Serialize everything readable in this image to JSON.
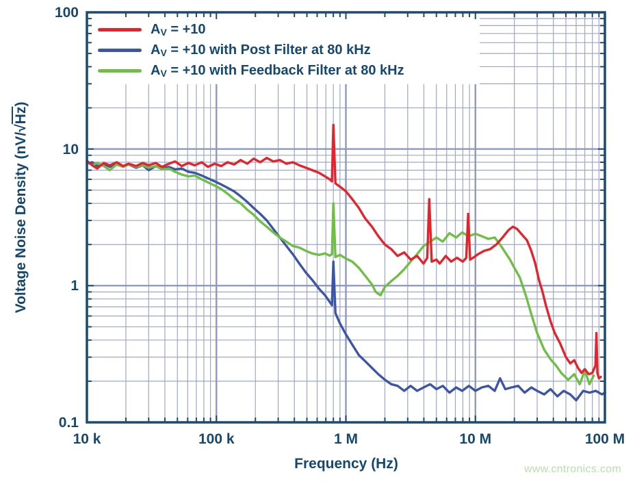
{
  "page": {
    "background": "#ffffff"
  },
  "watermark": {
    "text": "www.cntronics.com",
    "color": "#b6dfa9"
  },
  "colors": {
    "frame": "#1a4a70",
    "text": "#15486e",
    "grid_minor": "#9da6c8",
    "grid_major": "#8e98c0",
    "legend_background": "#ffffff"
  },
  "axis_x": {
    "title": "Frequency (Hz)",
    "scale": "log",
    "range": [
      10000,
      100000000
    ],
    "tick_values": [
      10000,
      100000,
      1000000,
      10000000,
      100000000
    ],
    "tick_labels": [
      "10 k",
      "100 k",
      "1 M",
      "10 M",
      "100 M"
    ]
  },
  "axis_y": {
    "title_pre": "Voltage Noise Density (nV/",
    "radical": "√",
    "radicand": "Hz",
    "title_post": ")",
    "scale": "log",
    "range": [
      0.1,
      100
    ],
    "tick_values": [
      100,
      10,
      1,
      0.1
    ],
    "tick_labels": [
      "100",
      "10",
      "1",
      "0.1"
    ]
  },
  "chart_data": {
    "type": "line",
    "xlabel": "Frequency (Hz)",
    "ylabel": "Voltage Noise Density (nV/√Hz)",
    "x_scale": "log",
    "y_scale": "log",
    "xlim": [
      10000,
      100000000
    ],
    "ylim": [
      0.1,
      100
    ],
    "grid": "log major and minor gridlines, both axes",
    "legend_position": "top-left inside",
    "draw_order": [
      1,
      2,
      0
    ],
    "series": [
      {
        "id": "av10",
        "label_base": "A",
        "label_sub": "V",
        "label_rest": " = +10",
        "color": "#e5232b",
        "points": [
          [
            10000,
            8.2
          ],
          [
            11000,
            7.6
          ],
          [
            12000,
            7.2
          ],
          [
            13500,
            7.9
          ],
          [
            15000,
            7.6
          ],
          [
            17000,
            8.0
          ],
          [
            19000,
            7.5
          ],
          [
            21000,
            7.8
          ],
          [
            24000,
            7.5
          ],
          [
            27000,
            7.9
          ],
          [
            30000,
            7.6
          ],
          [
            34000,
            7.9
          ],
          [
            38000,
            7.4
          ],
          [
            43000,
            7.8
          ],
          [
            48000,
            8.1
          ],
          [
            54000,
            7.5
          ],
          [
            61000,
            7.9
          ],
          [
            68000,
            7.6
          ],
          [
            77000,
            8.0
          ],
          [
            86000,
            7.4
          ],
          [
            97000,
            7.8
          ],
          [
            109000,
            7.5
          ],
          [
            122000,
            8.0
          ],
          [
            137000,
            7.7
          ],
          [
            154000,
            8.3
          ],
          [
            173000,
            7.8
          ],
          [
            194000,
            8.5
          ],
          [
            218000,
            8.0
          ],
          [
            245000,
            8.6
          ],
          [
            275000,
            8.1
          ],
          [
            309000,
            8.3
          ],
          [
            347000,
            7.8
          ],
          [
            389000,
            8.0
          ],
          [
            437000,
            7.6
          ],
          [
            490000,
            7.3
          ],
          [
            550000,
            7.0
          ],
          [
            620000,
            6.7
          ],
          [
            690000,
            6.3
          ],
          [
            750000,
            6.0
          ],
          [
            780000,
            5.8
          ],
          [
            800000,
            15.0
          ],
          [
            830000,
            5.6
          ],
          [
            900000,
            5.3
          ],
          [
            1000000,
            4.9
          ],
          [
            1120000,
            4.3
          ],
          [
            1260000,
            3.7
          ],
          [
            1410000,
            3.1
          ],
          [
            1590000,
            2.7
          ],
          [
            1780000,
            2.3
          ],
          [
            2000000,
            2.0
          ],
          [
            2240000,
            1.85
          ],
          [
            2510000,
            1.65
          ],
          [
            2820000,
            1.75
          ],
          [
            3160000,
            1.55
          ],
          [
            3550000,
            1.65
          ],
          [
            3980000,
            1.45
          ],
          [
            4250000,
            1.6
          ],
          [
            4400000,
            4.3
          ],
          [
            4600000,
            1.5
          ],
          [
            5000000,
            1.55
          ],
          [
            5300000,
            1.45
          ],
          [
            5900000,
            1.65
          ],
          [
            6500000,
            1.5
          ],
          [
            7200000,
            1.6
          ],
          [
            8000000,
            1.5
          ],
          [
            8500000,
            1.6
          ],
          [
            8800000,
            3.35
          ],
          [
            9100000,
            1.55
          ],
          [
            9600000,
            1.6
          ],
          [
            10500000,
            1.7
          ],
          [
            11700000,
            1.8
          ],
          [
            13000000,
            1.85
          ],
          [
            14500000,
            2.0
          ],
          [
            16200000,
            2.25
          ],
          [
            18000000,
            2.55
          ],
          [
            19500000,
            2.7
          ],
          [
            21000000,
            2.6
          ],
          [
            23000000,
            2.35
          ],
          [
            25000000,
            2.15
          ],
          [
            27000000,
            1.8
          ],
          [
            29000000,
            1.45
          ],
          [
            31000000,
            1.1
          ],
          [
            33000000,
            0.9
          ],
          [
            35000000,
            0.72
          ],
          [
            38000000,
            0.55
          ],
          [
            41000000,
            0.45
          ],
          [
            45000000,
            0.38
          ],
          [
            50000000,
            0.3
          ],
          [
            54000000,
            0.27
          ],
          [
            58000000,
            0.285
          ],
          [
            62000000,
            0.25
          ],
          [
            66000000,
            0.23
          ],
          [
            70000000,
            0.245
          ],
          [
            75000000,
            0.225
          ],
          [
            80000000,
            0.23
          ],
          [
            83000000,
            0.25
          ],
          [
            84500000,
            0.26
          ],
          [
            86000000,
            0.45
          ],
          [
            87500000,
            0.23
          ],
          [
            90000000,
            0.21
          ],
          [
            93000000,
            0.215
          ]
        ]
      },
      {
        "id": "post-filter",
        "label_base": "A",
        "label_sub": "V",
        "label_rest": " = +10 with Post Filter at 80 kHz",
        "color": "#3d55a5",
        "points": [
          [
            10000,
            7.8
          ],
          [
            11000,
            8.0
          ],
          [
            12000,
            7.5
          ],
          [
            13500,
            7.8
          ],
          [
            15000,
            7.4
          ],
          [
            17000,
            7.7
          ],
          [
            19000,
            7.5
          ],
          [
            21000,
            7.7
          ],
          [
            24000,
            7.3
          ],
          [
            27000,
            7.6
          ],
          [
            30000,
            7.0
          ],
          [
            34000,
            7.5
          ],
          [
            38000,
            7.2
          ],
          [
            43000,
            7.4
          ],
          [
            48000,
            7.1
          ],
          [
            54000,
            7.2
          ],
          [
            61000,
            6.8
          ],
          [
            68000,
            6.7
          ],
          [
            77000,
            6.4
          ],
          [
            86000,
            6.1
          ],
          [
            97000,
            5.8
          ],
          [
            109000,
            5.5
          ],
          [
            122000,
            5.2
          ],
          [
            137000,
            4.9
          ],
          [
            154000,
            4.5
          ],
          [
            173000,
            4.1
          ],
          [
            194000,
            3.7
          ],
          [
            218000,
            3.35
          ],
          [
            245000,
            3.0
          ],
          [
            275000,
            2.6
          ],
          [
            309000,
            2.25
          ],
          [
            347000,
            1.95
          ],
          [
            389000,
            1.7
          ],
          [
            437000,
            1.45
          ],
          [
            490000,
            1.25
          ],
          [
            550000,
            1.1
          ],
          [
            620000,
            0.95
          ],
          [
            690000,
            0.85
          ],
          [
            750000,
            0.76
          ],
          [
            780000,
            0.72
          ],
          [
            800000,
            1.5
          ],
          [
            830000,
            0.63
          ],
          [
            900000,
            0.53
          ],
          [
            1000000,
            0.44
          ],
          [
            1120000,
            0.37
          ],
          [
            1260000,
            0.31
          ],
          [
            1410000,
            0.28
          ],
          [
            1590000,
            0.25
          ],
          [
            1780000,
            0.225
          ],
          [
            2000000,
            0.205
          ],
          [
            2240000,
            0.19
          ],
          [
            2510000,
            0.185
          ],
          [
            2820000,
            0.17
          ],
          [
            3160000,
            0.185
          ],
          [
            3550000,
            0.17
          ],
          [
            3980000,
            0.18
          ],
          [
            4470000,
            0.19
          ],
          [
            5000000,
            0.175
          ],
          [
            5600000,
            0.185
          ],
          [
            6300000,
            0.165
          ],
          [
            7100000,
            0.18
          ],
          [
            7900000,
            0.17
          ],
          [
            8900000,
            0.185
          ],
          [
            10000000,
            0.17
          ],
          [
            11200000,
            0.18
          ],
          [
            12600000,
            0.185
          ],
          [
            14100000,
            0.17
          ],
          [
            15500000,
            0.21
          ],
          [
            17000000,
            0.175
          ],
          [
            19000000,
            0.18
          ],
          [
            21400000,
            0.185
          ],
          [
            24000000,
            0.165
          ],
          [
            27000000,
            0.18
          ],
          [
            30000000,
            0.17
          ],
          [
            34000000,
            0.16
          ],
          [
            38000000,
            0.175
          ],
          [
            43000000,
            0.155
          ],
          [
            48000000,
            0.17
          ],
          [
            54000000,
            0.16
          ],
          [
            60000000,
            0.145
          ],
          [
            68000000,
            0.17
          ],
          [
            76000000,
            0.165
          ],
          [
            85000000,
            0.17
          ],
          [
            95000000,
            0.16
          ],
          [
            100000000,
            0.165
          ]
        ]
      },
      {
        "id": "feedback-filter",
        "label_base": "A",
        "label_sub": "V",
        "label_rest": " = +10 with Feedback Filter at 80 kHz",
        "color": "#6ebf44",
        "points": [
          [
            10000,
            8.1
          ],
          [
            11000,
            7.6
          ],
          [
            12000,
            7.9
          ],
          [
            13500,
            7.5
          ],
          [
            15000,
            7.0
          ],
          [
            17000,
            7.7
          ],
          [
            19000,
            7.4
          ],
          [
            21000,
            7.7
          ],
          [
            24000,
            7.4
          ],
          [
            27000,
            7.6
          ],
          [
            30000,
            7.3
          ],
          [
            34000,
            7.5
          ],
          [
            38000,
            7.1
          ],
          [
            43000,
            7.2
          ],
          [
            48000,
            6.8
          ],
          [
            54000,
            6.5
          ],
          [
            61000,
            6.3
          ],
          [
            68000,
            6.4
          ],
          [
            77000,
            6.0
          ],
          [
            86000,
            5.7
          ],
          [
            97000,
            5.4
          ],
          [
            109000,
            5.1
          ],
          [
            122000,
            4.7
          ],
          [
            137000,
            4.3
          ],
          [
            154000,
            4.0
          ],
          [
            173000,
            3.6
          ],
          [
            194000,
            3.3
          ],
          [
            218000,
            2.95
          ],
          [
            245000,
            2.7
          ],
          [
            275000,
            2.45
          ],
          [
            309000,
            2.25
          ],
          [
            347000,
            2.1
          ],
          [
            389000,
            1.95
          ],
          [
            437000,
            1.9
          ],
          [
            490000,
            1.8
          ],
          [
            550000,
            1.72
          ],
          [
            620000,
            1.68
          ],
          [
            690000,
            1.72
          ],
          [
            750000,
            1.66
          ],
          [
            780000,
            1.7
          ],
          [
            800000,
            4.0
          ],
          [
            830000,
            1.62
          ],
          [
            900000,
            1.68
          ],
          [
            1000000,
            1.58
          ],
          [
            1120000,
            1.5
          ],
          [
            1260000,
            1.35
          ],
          [
            1410000,
            1.18
          ],
          [
            1590000,
            1.02
          ],
          [
            1700000,
            0.9
          ],
          [
            1850000,
            0.85
          ],
          [
            2000000,
            0.98
          ],
          [
            2240000,
            1.08
          ],
          [
            2510000,
            1.18
          ],
          [
            2820000,
            1.32
          ],
          [
            3160000,
            1.5
          ],
          [
            3550000,
            1.7
          ],
          [
            3980000,
            1.95
          ],
          [
            4470000,
            2.1
          ],
          [
            5000000,
            2.25
          ],
          [
            5600000,
            2.1
          ],
          [
            6300000,
            2.42
          ],
          [
            7100000,
            2.25
          ],
          [
            7900000,
            2.45
          ],
          [
            8900000,
            2.3
          ],
          [
            10000000,
            2.4
          ],
          [
            11200000,
            2.3
          ],
          [
            12600000,
            2.2
          ],
          [
            14100000,
            2.25
          ],
          [
            15500000,
            2.0
          ],
          [
            17000000,
            1.75
          ],
          [
            18500000,
            1.55
          ],
          [
            20000000,
            1.35
          ],
          [
            22000000,
            1.15
          ],
          [
            24500000,
            0.85
          ],
          [
            27000000,
            0.62
          ],
          [
            30000000,
            0.45
          ],
          [
            34000000,
            0.34
          ],
          [
            38000000,
            0.29
          ],
          [
            42000000,
            0.26
          ],
          [
            46000000,
            0.23
          ],
          [
            52000000,
            0.205
          ],
          [
            58000000,
            0.225
          ],
          [
            64000000,
            0.19
          ],
          [
            70000000,
            0.24
          ],
          [
            76000000,
            0.19
          ],
          [
            82000000,
            0.22
          ]
        ]
      }
    ]
  }
}
